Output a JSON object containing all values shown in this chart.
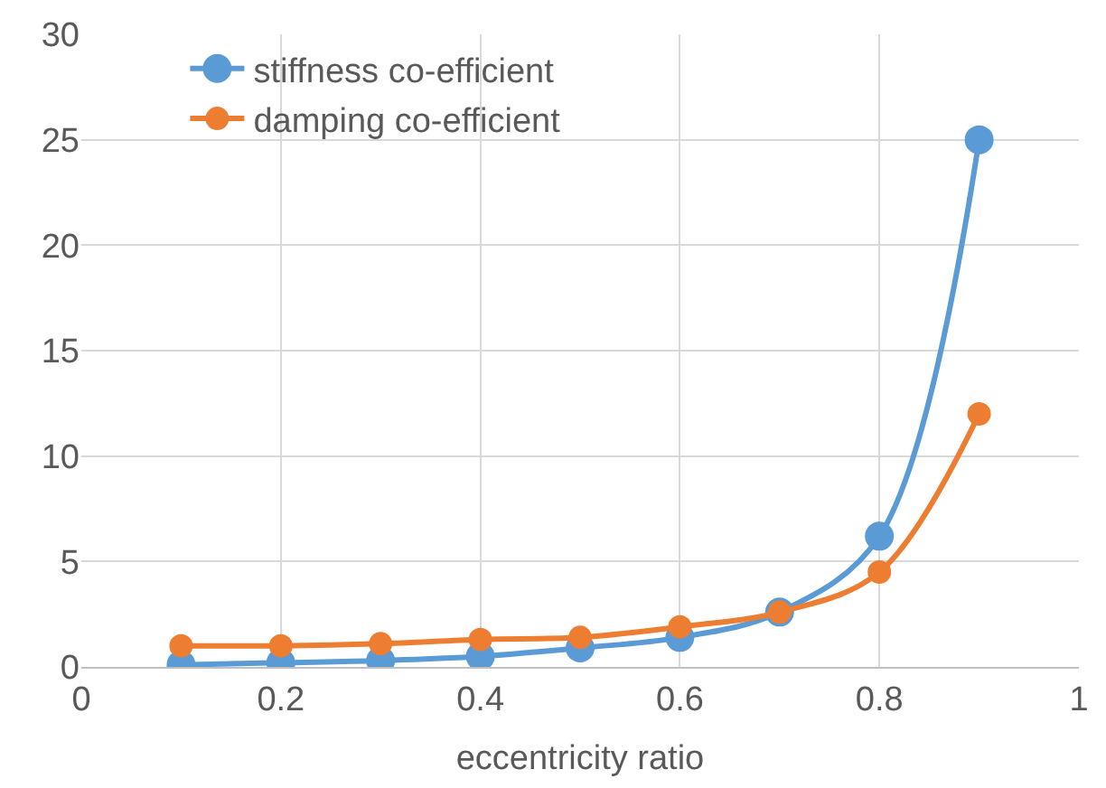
{
  "chart_data": {
    "type": "line",
    "xlabel": "eccentricity ratio",
    "x": [
      0.1,
      0.2,
      0.3,
      0.4,
      0.5,
      0.6,
      0.7,
      0.8,
      0.9
    ],
    "series": [
      {
        "name": "stiffness co-efficient",
        "color": "#5b9bd5",
        "values": [
          0.1,
          0.2,
          0.3,
          0.5,
          0.9,
          1.4,
          2.6,
          6.2,
          25
        ]
      },
      {
        "name": "damping co-efficient",
        "color": "#ed7d31",
        "values": [
          1.0,
          1.0,
          1.1,
          1.3,
          1.4,
          1.9,
          2.6,
          4.5,
          12
        ]
      }
    ],
    "xlim": [
      0,
      1
    ],
    "xticks": [
      0,
      0.2,
      0.4,
      0.6,
      0.8,
      1
    ],
    "ylim": [
      0,
      30
    ],
    "yticks": [
      0,
      5,
      10,
      15,
      20,
      25,
      30
    ],
    "grid": true,
    "legend": "top left",
    "marker": "circle",
    "line_style": "solid"
  }
}
